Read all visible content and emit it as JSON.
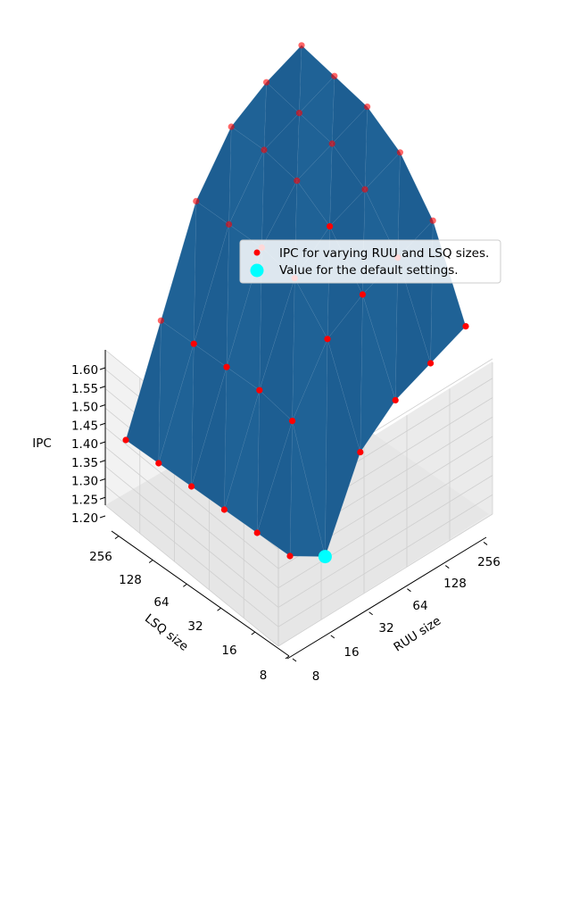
{
  "chart_data": {
    "type": "surface3d",
    "title": "",
    "xlabel": "RUU size",
    "ylabel": "LSQ size",
    "zlabel": "IPC",
    "ruu_ticks": [
      "8",
      "16",
      "32",
      "64",
      "128",
      "256"
    ],
    "lsq_ticks": [
      "8",
      "16",
      "32",
      "64",
      "128",
      "256"
    ],
    "zticks": [
      "1.20",
      "1.25",
      "1.30",
      "1.35",
      "1.40",
      "1.45",
      "1.50",
      "1.55",
      "1.60"
    ],
    "zlim": [
      1.2,
      1.6
    ],
    "grid": true,
    "legend_position": "top-right",
    "surface_color": "#1f5f91",
    "point_color": "#ff0000",
    "highlight_color": "#00ffff",
    "series": [
      {
        "name": "IPC for varying RUU and LSQ sizes.",
        "kind": "scatter"
      },
      {
        "name": "Value for the default settings.",
        "kind": "highlight",
        "ruu": 16,
        "lsq": 8,
        "ipc": 1.26
      }
    ],
    "grid_points": [
      {
        "lsq": 8,
        "ruu": [
          8,
          16,
          32,
          64,
          128,
          256
        ],
        "ipc": [
          1.3,
          1.26,
          1.36,
          1.39,
          1.4,
          1.41
        ]
      },
      {
        "lsq": 16,
        "ruu": [
          8,
          16,
          32,
          64,
          128,
          256
        ],
        "ipc": [
          1.3,
          1.41,
          1.48,
          1.5,
          1.51,
          1.52
        ]
      },
      {
        "lsq": 32,
        "ruu": [
          8,
          16,
          32,
          64,
          128,
          256
        ],
        "ipc": [
          1.3,
          1.42,
          1.53,
          1.56,
          1.57,
          1.58
        ]
      },
      {
        "lsq": 64,
        "ruu": [
          8,
          16,
          32,
          64,
          128,
          256
        ],
        "ipc": [
          1.3,
          1.42,
          1.54,
          1.59,
          1.6,
          1.61
        ]
      },
      {
        "lsq": 128,
        "ruu": [
          8,
          16,
          32,
          64,
          128,
          256
        ],
        "ipc": [
          1.3,
          1.42,
          1.54,
          1.6,
          1.61,
          1.62
        ]
      },
      {
        "lsq": 256,
        "ruu": [
          8,
          16,
          32,
          64,
          128,
          256
        ],
        "ipc": [
          1.3,
          1.42,
          1.54,
          1.6,
          1.62,
          1.63
        ]
      }
    ]
  }
}
